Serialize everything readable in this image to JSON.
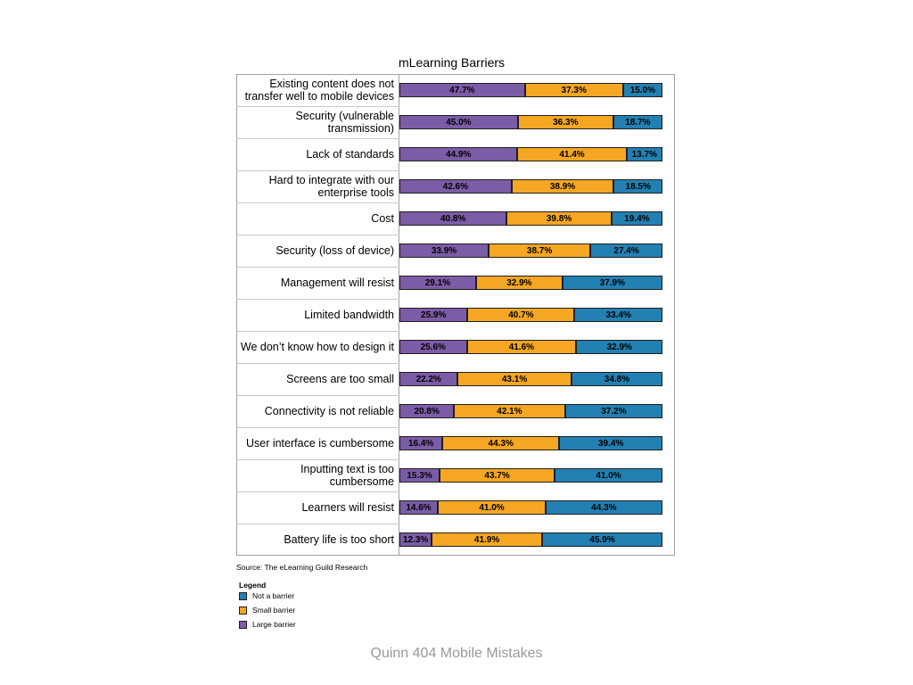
{
  "chart_data": {
    "type": "bar",
    "stacked": true,
    "orientation": "horizontal",
    "title": "mLearning Barriers",
    "categories": [
      "Existing content does not transfer well to mobile devices",
      "Security (vulnerable transmission)",
      "Lack of standards",
      "Hard to integrate with our enterprise tools",
      "Cost",
      "Security (loss of device)",
      "Management will resist",
      "Limited bandwidth",
      "We don’t know how to design it",
      "Screens are too small",
      "Connectivity is not reliable",
      "User interface is cumbersome",
      "Inputting text is too cumbersome",
      "Learners will resist",
      "Battery life is too short"
    ],
    "series": [
      {
        "name": "Large barrier",
        "color": "#7b5ca7",
        "values": [
          47.7,
          45.0,
          44.9,
          42.6,
          40.8,
          33.9,
          29.1,
          25.9,
          25.6,
          22.2,
          20.8,
          16.4,
          15.3,
          14.6,
          12.3
        ]
      },
      {
        "name": "Small barrier",
        "color": "#f5a623",
        "values": [
          37.3,
          36.3,
          41.4,
          38.9,
          39.8,
          38.7,
          32.9,
          40.7,
          41.6,
          43.1,
          42.1,
          44.3,
          43.7,
          41.0,
          41.9
        ]
      },
      {
        "name": "Not a barrier",
        "color": "#2280b3",
        "values": [
          15.0,
          18.7,
          13.7,
          18.5,
          19.4,
          27.4,
          37.9,
          33.4,
          32.9,
          34.8,
          37.2,
          39.4,
          41.0,
          44.3,
          45.9
        ]
      }
    ],
    "xlim": [
      0,
      100
    ],
    "value_suffix": "%",
    "legend_title": "Legend",
    "legend_order": [
      "Not a barrier",
      "Small barrier",
      "Large barrier"
    ],
    "legend_placement": "bottom-left"
  },
  "source": "Source: The eLearning Guild Research",
  "footer": "Quinn 404 Mobile Mistakes"
}
